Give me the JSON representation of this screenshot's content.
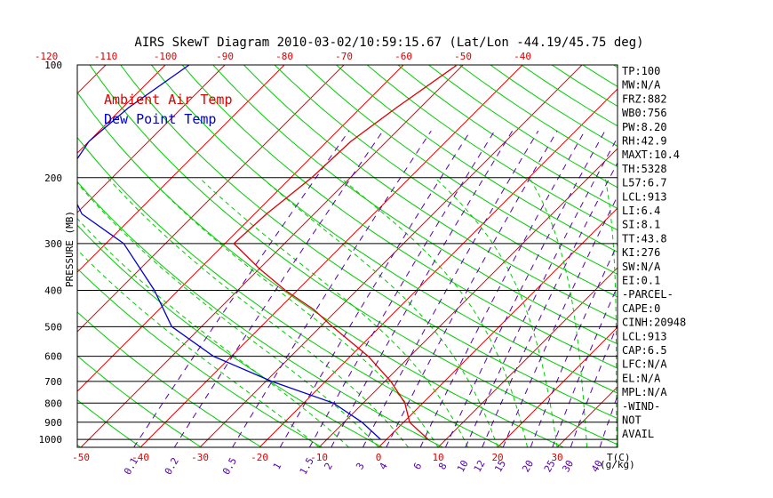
{
  "title": "AIRS SkewT Diagram 2010-03-02/10:59:15.67 (Lat/Lon -44.19/45.75 deg)",
  "colors": {
    "temp": "#dd0000",
    "dewpoint": "#0000cc",
    "isotherm": "#dd0000",
    "dry_adiabat": "#00cc00",
    "mixing_ratio": "#5500aa",
    "frame": "#000000"
  },
  "legend": {
    "air_temp": "Ambient Air Temp",
    "dew_point": "Dew Point Temp"
  },
  "axes": {
    "ylabel": "PRESSURE (MB)",
    "top_unit": "",
    "bottom_unit": "T(C)",
    "mixing_unit": "(g/kg)"
  },
  "chart_data": {
    "type": "line",
    "title": "AIRS SkewT Diagram 2010-03-02/10:59:15.67 (Lat/Lon -44.19/45.75 deg)",
    "ylabel": "PRESSURE (MB)",
    "xlabel": "T(C)",
    "y_scale": "log",
    "ylim": [
      100,
      1050
    ],
    "pressure_ticks": [
      100,
      200,
      300,
      400,
      500,
      600,
      700,
      800,
      900,
      1000
    ],
    "bottom_temp_ticks": [
      -50,
      -40,
      -30,
      -20,
      -10,
      0,
      10,
      20,
      30
    ],
    "top_temp_ticks": [
      -120,
      -110,
      -100,
      -90,
      -80,
      -70,
      -60,
      -50,
      -40
    ],
    "mixing_ratio_ticks": [
      "0.1",
      "0.2",
      "0.5",
      "1",
      "1.5",
      "2",
      "3",
      "4",
      "6",
      "8",
      "10",
      "12",
      "15",
      "20",
      "25",
      "30",
      "40"
    ],
    "series": [
      {
        "name": "Ambient Air Temp",
        "points": [
          {
            "p": 100,
            "t": -51
          },
          {
            "p": 130,
            "t": -54
          },
          {
            "p": 160,
            "t": -56
          },
          {
            "p": 200,
            "t": -56.5
          },
          {
            "p": 250,
            "t": -58
          },
          {
            "p": 300,
            "t": -58.5
          },
          {
            "p": 350,
            "t": -50
          },
          {
            "p": 400,
            "t": -42
          },
          {
            "p": 450,
            "t": -34
          },
          {
            "p": 500,
            "t": -28
          },
          {
            "p": 600,
            "t": -17
          },
          {
            "p": 700,
            "t": -9
          },
          {
            "p": 800,
            "t": -3
          },
          {
            "p": 900,
            "t": 1
          },
          {
            "p": 1000,
            "t": 7
          }
        ]
      },
      {
        "name": "Dew Point Temp",
        "points": [
          {
            "p": 100,
            "t": -96
          },
          {
            "p": 130,
            "t": -99
          },
          {
            "p": 160,
            "t": -100
          },
          {
            "p": 200,
            "t": -98
          },
          {
            "p": 250,
            "t": -89
          },
          {
            "p": 300,
            "t": -77
          },
          {
            "p": 400,
            "t": -64
          },
          {
            "p": 500,
            "t": -55
          },
          {
            "p": 600,
            "t": -43
          },
          {
            "p": 700,
            "t": -29
          },
          {
            "p": 800,
            "t": -15
          },
          {
            "p": 900,
            "t": -7
          },
          {
            "p": 1000,
            "t": -1
          }
        ]
      }
    ]
  },
  "indices": [
    "TP:100",
    "MW:N/A",
    "FRZ:882",
    "WB0:756",
    "PW:8.20",
    "RH:42.9",
    "MAXT:10.4",
    "TH:5328",
    "L57:6.7",
    "LCL:913",
    "LI:6.4",
    "SI:8.1",
    "TT:43.8",
    "KI:276",
    "SW:N/A",
    "EI:0.1",
    "-PARCEL-",
    "CAPE:0",
    "CINH:20948",
    "LCL:913",
    "CAP:6.5",
    "LFC:N/A",
    "EL:N/A",
    "MPL:N/A",
    "-WIND-",
    "NOT",
    "AVAIL"
  ]
}
